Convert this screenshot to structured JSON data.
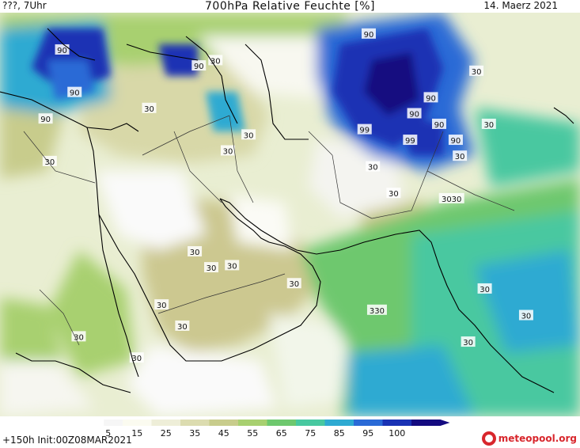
{
  "header": {
    "left": "???, 7Uhr",
    "center": "700hPa Relative Feuchte [%]",
    "right": "14. Maerz 2021"
  },
  "footer": {
    "run_info": "+150h  Init:00Z08MAR2021",
    "logo": "meteopool.org"
  },
  "colorbar": {
    "ticks": [
      "5",
      "15",
      "25",
      "35",
      "45",
      "55",
      "65",
      "75",
      "85",
      "95",
      "100"
    ],
    "colors": [
      "#f6f6f6",
      "#fbfbf0",
      "#eeeed8",
      "#dcdcb0",
      "#c8cc8c",
      "#a8d070",
      "#6ec86e",
      "#48c8a0",
      "#2eaad2",
      "#2a6ad6",
      "#1a32b4",
      "#140a80"
    ]
  },
  "map": {
    "contour_labels": [
      {
        "text": "90",
        "lon": 27.5,
        "lat": 39.5
      },
      {
        "text": "90",
        "lon": 44.0,
        "lat": 38.0
      },
      {
        "text": "90",
        "lon": 29.0,
        "lat": 35.5
      },
      {
        "text": "90",
        "lon": 25.5,
        "lat": 33.0
      },
      {
        "text": "90",
        "lon": 64.5,
        "lat": 41.0
      },
      {
        "text": "30",
        "lon": 46.0,
        "lat": 38.5
      },
      {
        "text": "30",
        "lon": 38.0,
        "lat": 34.0
      },
      {
        "text": "30",
        "lon": 50.0,
        "lat": 31.5
      },
      {
        "text": "30",
        "lon": 47.5,
        "lat": 30.0
      },
      {
        "text": "30",
        "lon": 26.0,
        "lat": 29.0
      },
      {
        "text": "90",
        "lon": 72.0,
        "lat": 35.0
      },
      {
        "text": "90",
        "lon": 70.0,
        "lat": 33.5
      },
      {
        "text": "99",
        "lon": 64.0,
        "lat": 32.0
      },
      {
        "text": "99",
        "lon": 69.5,
        "lat": 31.0
      },
      {
        "text": "90",
        "lon": 73.0,
        "lat": 32.5
      },
      {
        "text": "90",
        "lon": 75.0,
        "lat": 31.0
      },
      {
        "text": "30",
        "lon": 77.5,
        "lat": 37.5
      },
      {
        "text": "30",
        "lon": 79.0,
        "lat": 32.5
      },
      {
        "text": "30",
        "lon": 75.5,
        "lat": 29.5
      },
      {
        "text": "30",
        "lon": 65.0,
        "lat": 28.5
      },
      {
        "text": "30",
        "lon": 67.5,
        "lat": 26.0
      },
      {
        "text": "3030",
        "lon": 74.5,
        "lat": 25.5
      },
      {
        "text": "30",
        "lon": 43.5,
        "lat": 20.5
      },
      {
        "text": "30",
        "lon": 45.5,
        "lat": 19.0
      },
      {
        "text": "30",
        "lon": 48.0,
        "lat": 19.2
      },
      {
        "text": "30",
        "lon": 55.5,
        "lat": 17.5
      },
      {
        "text": "30",
        "lon": 39.5,
        "lat": 15.5
      },
      {
        "text": "30",
        "lon": 42.0,
        "lat": 13.5
      },
      {
        "text": "30",
        "lon": 29.5,
        "lat": 12.5
      },
      {
        "text": "30",
        "lon": 36.5,
        "lat": 10.5
      },
      {
        "text": "330",
        "lon": 65.5,
        "lat": 15.0
      },
      {
        "text": "30",
        "lon": 78.5,
        "lat": 17.0
      },
      {
        "text": "30",
        "lon": 76.5,
        "lat": 12.0
      },
      {
        "text": "30",
        "lon": 83.5,
        "lat": 14.5
      }
    ]
  }
}
